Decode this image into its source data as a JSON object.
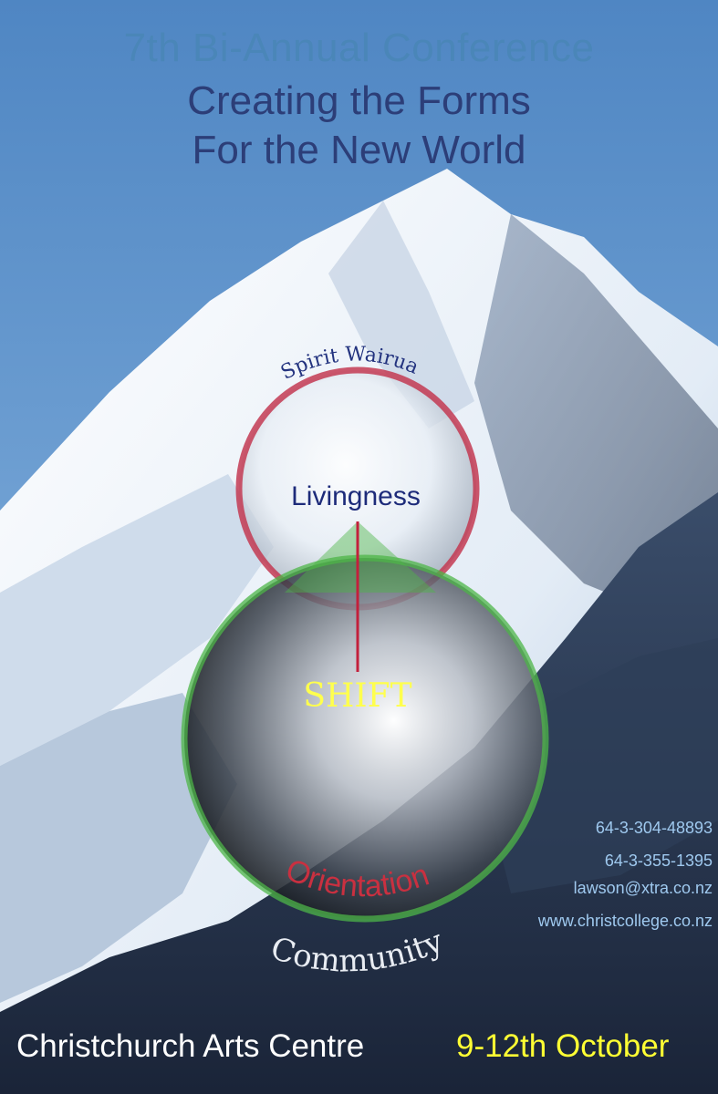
{
  "header": {
    "line1": "7th Bi-Annual Conference",
    "line2": "Creating the Forms",
    "line3": "For the New World"
  },
  "diagram": {
    "arc_top": "Spirit  Wairua",
    "inner_label": "Livingness",
    "center_label": "SHIFT",
    "arc_red": "Orientation",
    "arc_bottom": "Community"
  },
  "contact": {
    "phone1": "64-3-304-48893",
    "phone2": "64-3-355-1395",
    "email": "lawson@xtra.co.nz",
    "website": "www.christcollege.co.nz"
  },
  "footer": {
    "venue": "Christchurch Arts Centre",
    "dates": "9-12th October"
  },
  "colors": {
    "sky": "#5e92c9",
    "title_light": "#4a86b8",
    "title_dark": "#2c3e78",
    "ring_red": "#c33a52",
    "ring_green": "#4db548",
    "accent_yellow": "#ffff33"
  }
}
